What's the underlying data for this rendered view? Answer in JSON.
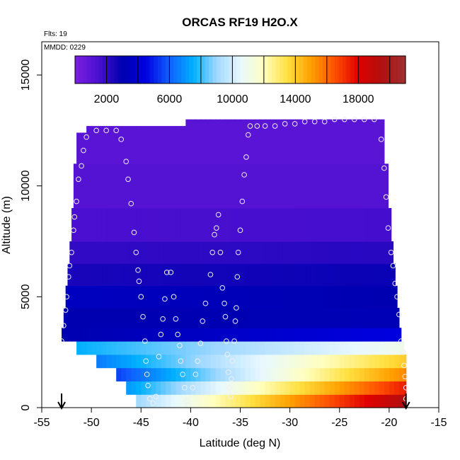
{
  "chart_data": {
    "type": "heatmap",
    "title": "ORCAS RF19 H2O.X",
    "xlabel": "Latitude (deg N)",
    "ylabel": "Altitude (m)",
    "xlim": [
      -55,
      -15
    ],
    "ylim": [
      0,
      16500
    ],
    "x_ticks": [
      -55,
      -50,
      -45,
      -40,
      -35,
      -30,
      -25,
      -20,
      -15
    ],
    "y_ticks": [
      0,
      5000,
      10000,
      15000
    ],
    "annotations": {
      "flights": "Flts: 19",
      "date": "MMDD: 0229"
    },
    "colorbar": {
      "range": [
        0,
        21000
      ],
      "ticks": [
        2000,
        6000,
        10000,
        14000,
        18000
      ],
      "colors": [
        "#7b1fe0",
        "#4a0fd0",
        "#0000b0",
        "#0000e0",
        "#1060ff",
        "#00b0ff",
        "#a0d8ff",
        "#e8f8ff",
        "#ffffc0",
        "#ffe040",
        "#ffa000",
        "#ff5000",
        "#e00000",
        "#b01010",
        "#a03030"
      ]
    },
    "markers": {
      "left_latitude": -53,
      "right_latitude": -18.3
    },
    "field": [
      {
        "alt_min": 0,
        "alt_max": 600,
        "left": -45.5,
        "right": -18.3,
        "left_value": 9000,
        "right_value": 19500
      },
      {
        "alt_min": 600,
        "alt_max": 1200,
        "left": -46.5,
        "right": -18.3,
        "left_value": 7000,
        "right_value": 17500
      },
      {
        "alt_min": 1200,
        "alt_max": 1800,
        "left": -47.5,
        "right": -18.3,
        "left_value": 5500,
        "right_value": 15500
      },
      {
        "alt_min": 1800,
        "alt_max": 2400,
        "left": -49.5,
        "right": -18.3,
        "left_value": 6500,
        "right_value": 14000
      },
      {
        "alt_min": 2400,
        "alt_max": 3000,
        "left": -51.5,
        "right": -18.5,
        "left_value": 7500,
        "right_value": 11000
      },
      {
        "alt_min": 3000,
        "alt_max": 3600,
        "left": -53,
        "right": -18.8,
        "left_value": 3000,
        "right_value": 4500
      },
      {
        "alt_min": 3600,
        "alt_max": 4500,
        "left": -52.8,
        "right": -19,
        "left_value": 3000,
        "right_value": 3200
      },
      {
        "alt_min": 4500,
        "alt_max": 5500,
        "left": -52.6,
        "right": -19.2,
        "left_value": 3500,
        "right_value": 3000
      },
      {
        "alt_min": 5500,
        "alt_max": 6500,
        "left": -52.4,
        "right": -19.4,
        "left_value": 2500,
        "right_value": 2800
      },
      {
        "alt_min": 6500,
        "alt_max": 7500,
        "left": -52.2,
        "right": -19.6,
        "left_value": 2000,
        "right_value": 2200
      },
      {
        "alt_min": 7500,
        "alt_max": 9000,
        "left": -52,
        "right": -19.8,
        "left_value": 1500,
        "right_value": 1600
      },
      {
        "alt_min": 9000,
        "alt_max": 11000,
        "left": -51.8,
        "right": -20.1,
        "left_value": 1200,
        "right_value": 1200
      },
      {
        "alt_min": 11000,
        "alt_max": 12400,
        "left": -51.5,
        "right": -20.5,
        "left_value": 1000,
        "right_value": 1000
      },
      {
        "alt_min": 12400,
        "alt_max": 12700,
        "left": -50.5,
        "right": -20.5,
        "left_value": 1000,
        "right_value": 1000
      },
      {
        "alt_min": 12700,
        "alt_max": 13000,
        "left": -40.5,
        "right": -20.5,
        "left_value": 1000,
        "right_value": 1000
      }
    ],
    "flight_track": [
      {
        "lat": -53,
        "alt": 3000
      },
      {
        "lat": -52.8,
        "alt": 3700
      },
      {
        "lat": -52.6,
        "alt": 4400
      },
      {
        "lat": -52.5,
        "alt": 5000
      },
      {
        "lat": -52.3,
        "alt": 5900
      },
      {
        "lat": -52.2,
        "alt": 6400
      },
      {
        "lat": -52,
        "alt": 7000
      },
      {
        "lat": -51.8,
        "alt": 8000
      },
      {
        "lat": -51.7,
        "alt": 8600
      },
      {
        "lat": -51.5,
        "alt": 9300
      },
      {
        "lat": -51.3,
        "alt": 10300
      },
      {
        "lat": -51,
        "alt": 10900
      },
      {
        "lat": -50.8,
        "alt": 11600
      },
      {
        "lat": -50.5,
        "alt": 12200
      },
      {
        "lat": -49.5,
        "alt": 12500
      },
      {
        "lat": -48.5,
        "alt": 12500
      },
      {
        "lat": -47.5,
        "alt": 12500
      },
      {
        "lat": -47,
        "alt": 12100
      },
      {
        "lat": -46.5,
        "alt": 11100
      },
      {
        "lat": -46.3,
        "alt": 10300
      },
      {
        "lat": -46,
        "alt": 9200
      },
      {
        "lat": -45.7,
        "alt": 7900
      },
      {
        "lat": -45.5,
        "alt": 7000
      },
      {
        "lat": -45.3,
        "alt": 6200
      },
      {
        "lat": -45.2,
        "alt": 5700
      },
      {
        "lat": -45,
        "alt": 5000
      },
      {
        "lat": -44.8,
        "alt": 4100
      },
      {
        "lat": -44.6,
        "alt": 3000
      },
      {
        "lat": -44.5,
        "alt": 2100
      },
      {
        "lat": -44.4,
        "alt": 1500
      },
      {
        "lat": -44.3,
        "alt": 1000
      },
      {
        "lat": -44.1,
        "alt": 400
      },
      {
        "lat": -43.8,
        "alt": 200
      },
      {
        "lat": -43.5,
        "alt": 500
      },
      {
        "lat": -43.2,
        "alt": 2300
      },
      {
        "lat": -43,
        "alt": 3300
      },
      {
        "lat": -42.8,
        "alt": 4000
      },
      {
        "lat": -42.6,
        "alt": 4900
      },
      {
        "lat": -42.4,
        "alt": 6100
      },
      {
        "lat": -42,
        "alt": 6100
      },
      {
        "lat": -41.7,
        "alt": 5000
      },
      {
        "lat": -41.5,
        "alt": 4000
      },
      {
        "lat": -41.3,
        "alt": 3300
      },
      {
        "lat": -41.1,
        "alt": 2800
      },
      {
        "lat": -41,
        "alt": 2100
      },
      {
        "lat": -40.8,
        "alt": 1500
      },
      {
        "lat": -40.6,
        "alt": 900
      },
      {
        "lat": -40.4,
        "alt": 300
      },
      {
        "lat": -40.2,
        "alt": 100
      },
      {
        "lat": -39.8,
        "alt": 900
      },
      {
        "lat": -39.5,
        "alt": 1500
      },
      {
        "lat": -39.3,
        "alt": 2100
      },
      {
        "lat": -39,
        "alt": 2900
      },
      {
        "lat": -38.8,
        "alt": 3900
      },
      {
        "lat": -38.5,
        "alt": 4700
      },
      {
        "lat": -38,
        "alt": 6000
      },
      {
        "lat": -37.8,
        "alt": 7000
      },
      {
        "lat": -37.6,
        "alt": 7800
      },
      {
        "lat": -37.4,
        "alt": 8100
      },
      {
        "lat": -37.2,
        "alt": 8700
      },
      {
        "lat": -37,
        "alt": 7000
      },
      {
        "lat": -36.8,
        "alt": 5400
      },
      {
        "lat": -36.6,
        "alt": 4700
      },
      {
        "lat": -36.5,
        "alt": 4100
      },
      {
        "lat": -36.4,
        "alt": 3000
      },
      {
        "lat": -36.3,
        "alt": 2400
      },
      {
        "lat": -36.2,
        "alt": 1600
      },
      {
        "lat": -36.1,
        "alt": 900
      },
      {
        "lat": -36,
        "alt": 500
      },
      {
        "lat": -35.9,
        "alt": 1300
      },
      {
        "lat": -35.8,
        "alt": 2100
      },
      {
        "lat": -35.6,
        "alt": 3000
      },
      {
        "lat": -35.5,
        "alt": 3900
      },
      {
        "lat": -35.4,
        "alt": 4500
      },
      {
        "lat": -35.3,
        "alt": 5900
      },
      {
        "lat": -35.2,
        "alt": 7000
      },
      {
        "lat": -35,
        "alt": 8000
      },
      {
        "lat": -34.8,
        "alt": 9300
      },
      {
        "lat": -34.6,
        "alt": 10500
      },
      {
        "lat": -34.4,
        "alt": 11300
      },
      {
        "lat": -34.2,
        "alt": 12300
      },
      {
        "lat": -34,
        "alt": 12700
      },
      {
        "lat": -33.3,
        "alt": 12700
      },
      {
        "lat": -32.5,
        "alt": 12700
      },
      {
        "lat": -31.5,
        "alt": 12700
      },
      {
        "lat": -30.5,
        "alt": 12800
      },
      {
        "lat": -29.5,
        "alt": 12800
      },
      {
        "lat": -28.5,
        "alt": 12900
      },
      {
        "lat": -27.5,
        "alt": 12900
      },
      {
        "lat": -26.5,
        "alt": 12900
      },
      {
        "lat": -25.5,
        "alt": 13000
      },
      {
        "lat": -24.5,
        "alt": 13000
      },
      {
        "lat": -23.5,
        "alt": 13000
      },
      {
        "lat": -22.5,
        "alt": 13000
      },
      {
        "lat": -21.5,
        "alt": 13000
      },
      {
        "lat": -20.8,
        "alt": 12100
      },
      {
        "lat": -20.5,
        "alt": 10800
      },
      {
        "lat": -20.3,
        "alt": 9500
      },
      {
        "lat": -20.1,
        "alt": 8100
      },
      {
        "lat": -19.8,
        "alt": 7000
      },
      {
        "lat": -19.6,
        "alt": 6400
      },
      {
        "lat": -19.4,
        "alt": 5600
      },
      {
        "lat": -19.2,
        "alt": 5000
      },
      {
        "lat": -19,
        "alt": 4200
      },
      {
        "lat": -18.8,
        "alt": 3000
      },
      {
        "lat": -18.6,
        "alt": 2500
      },
      {
        "lat": -18.5,
        "alt": 1900
      },
      {
        "lat": -18.4,
        "alt": 1400
      },
      {
        "lat": -18.3,
        "alt": 900
      },
      {
        "lat": -18.3,
        "alt": 400
      }
    ]
  }
}
